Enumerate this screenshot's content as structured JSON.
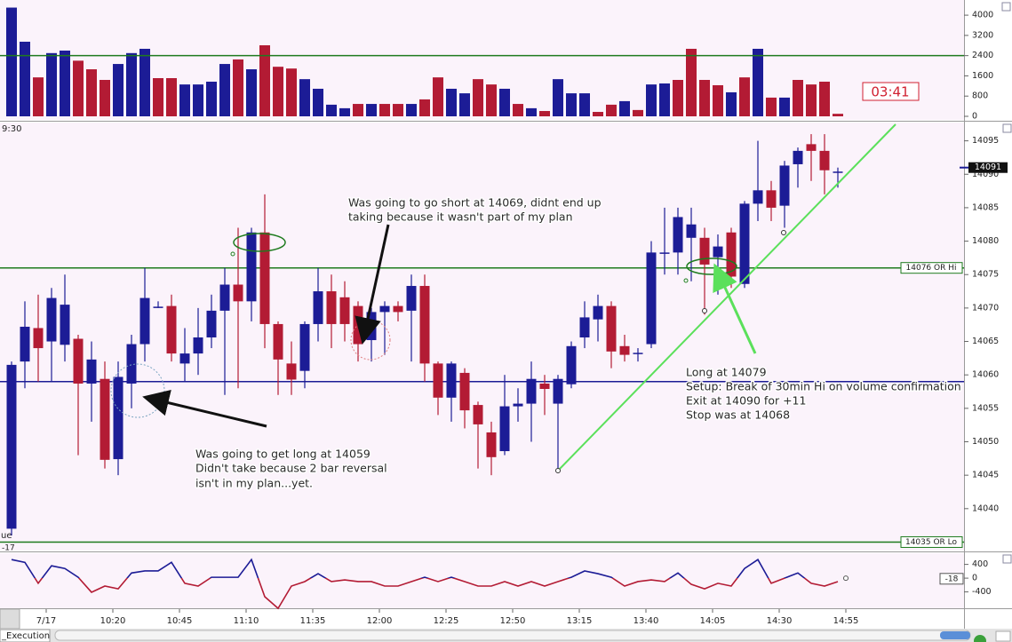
{
  "chart_data": [
    {
      "type": "bar",
      "values": [
        4300,
        2950,
        1540,
        2500,
        2600,
        2200,
        1860,
        1440,
        2070,
        2500,
        2670,
        1510,
        1510,
        1260,
        1260,
        1370,
        2070,
        2250,
        1860,
        2810,
        1960,
        1890,
        1470,
        1090,
        460,
        320,
        490,
        490,
        490,
        490,
        490,
        670,
        1540,
        1090,
        910,
        1470,
        1260,
        1090,
        490,
        320,
        210,
        1470,
        910,
        910,
        175,
        460,
        600,
        250,
        1260,
        1300,
        1440,
        2670,
        1440,
        1230,
        950,
        1540,
        2670,
        740,
        740,
        1440,
        1260,
        1370,
        100
      ],
      "colors": [
        "#1c1c96",
        "#1c1c96",
        "#b31b34",
        "#1c1c96",
        "#1c1c96",
        "#b31b34",
        "#b31b34",
        "#b31b34",
        "#1c1c96",
        "#1c1c96",
        "#1c1c96",
        "#b31b34",
        "#b31b34",
        "#1c1c96",
        "#1c1c96",
        "#1c1c96",
        "#1c1c96",
        "#b31b34",
        "#1c1c96",
        "#b31b34",
        "#b31b34",
        "#b31b34",
        "#1c1c96",
        "#1c1c96",
        "#1c1c96",
        "#1c1c96",
        "#b31b34",
        "#1c1c96",
        "#b31b34",
        "#b31b34",
        "#1c1c96",
        "#b31b34",
        "#b31b34",
        "#1c1c96",
        "#1c1c96",
        "#b31b34",
        "#b31b34",
        "#1c1c96",
        "#b31b34",
        "#1c1c96",
        "#b31b34",
        "#1c1c96",
        "#1c1c96",
        "#1c1c96",
        "#b31b34",
        "#b31b34",
        "#1c1c96",
        "#b31b34",
        "#1c1c96",
        "#1c1c96",
        "#b31b34",
        "#b31b34",
        "#b31b34",
        "#b31b34",
        "#1c1c96",
        "#b31b34",
        "#1c1c96",
        "#b31b34",
        "#1c1c96",
        "#b31b34",
        "#b31b34",
        "#b31b34",
        "#b31b34"
      ],
      "ylim": [
        0,
        4600
      ],
      "yticks": [
        0,
        800,
        1600,
        2400,
        3200,
        4000
      ],
      "reference_line": {
        "value": 2400,
        "color": "#1e7b1e"
      }
    },
    {
      "type": "candlestick",
      "open": [
        14037,
        14062,
        14067,
        14065,
        14064.5,
        14065.4,
        14058.7,
        14059.4,
        14047.4,
        14058.7,
        14064.6,
        14070,
        14070.3,
        14061.7,
        14063.2,
        14065.6,
        14069.6,
        14073.5,
        14071,
        14081.3,
        14067.6,
        14061.7,
        14060.6,
        14067.6,
        14072.5,
        14071.6,
        14070.3,
        14065.2,
        14069.4,
        14070.3,
        14069.6,
        14073.3,
        14061.7,
        14056.6,
        14060.3,
        14055.5,
        14051.4,
        14048.6,
        14055.3,
        14055.7,
        14058.7,
        14055.7,
        14058.6,
        14065.6,
        14068.3,
        14070.3,
        14064.3,
        14063.2,
        14064.6,
        14078.3,
        14078.3,
        14080.5,
        14080.5,
        14077.6,
        14081.3,
        14073.6,
        14085.6,
        14087.6,
        14085.3,
        14091.5,
        14094.5,
        14093.5,
        14090.4
      ],
      "high": [
        14062,
        14071,
        14072,
        14073,
        14075,
        14066,
        14065,
        14062,
        14062,
        14066,
        14076,
        14071,
        14072,
        14067,
        14070,
        14072,
        14076,
        14082,
        14082,
        14087,
        14068,
        14065,
        14068,
        14076,
        14075,
        14074,
        14071,
        14070,
        14071,
        14071,
        14075,
        14075,
        14062,
        14062,
        14061,
        14056,
        14053,
        14060,
        14058,
        14062,
        14060,
        14060,
        14065,
        14071,
        14072,
        14071,
        14066,
        14064,
        14080,
        14085,
        14085,
        14085,
        14082,
        14081,
        14082,
        14086,
        14095,
        14089,
        14092,
        14094,
        14096,
        14096,
        14091
      ],
      "low": [
        14036,
        14058,
        14059,
        14059,
        14062,
        14048,
        14053,
        14046,
        14045,
        14055,
        14062,
        14070,
        14062,
        14059,
        14060,
        14064,
        14057,
        14058,
        14068,
        14064,
        14057,
        14057,
        14058,
        14065,
        14064,
        14065,
        14062,
        14062,
        14063,
        14068,
        14062,
        14059,
        14054,
        14053,
        14052,
        14046,
        14045,
        14048,
        14053,
        14050,
        14054,
        14046,
        14058,
        14064,
        14065,
        14061,
        14062,
        14062,
        14064,
        14075,
        14075,
        14074,
        14069,
        14072,
        14073,
        14073,
        14083,
        14083,
        14082,
        14088,
        14089,
        14087,
        14088
      ],
      "close": [
        14061.5,
        14067.2,
        14064,
        14071.5,
        14070.5,
        14058.7,
        14062.3,
        14047.3,
        14059.7,
        14064.6,
        14071.5,
        14070.2,
        14063.2,
        14063.2,
        14065.6,
        14069.6,
        14073.5,
        14071,
        14081.3,
        14067.6,
        14062.3,
        14059.3,
        14067.6,
        14072.5,
        14067.6,
        14067.6,
        14064.6,
        14069.4,
        14070.3,
        14069.4,
        14073.3,
        14061.7,
        14056.6,
        14061.7,
        14054.7,
        14052.6,
        14047.7,
        14055.3,
        14055.7,
        14059.4,
        14057.9,
        14059.4,
        14064.3,
        14068.6,
        14070.3,
        14063.5,
        14063,
        14063.3,
        14078.3,
        14078.3,
        14083.6,
        14082.5,
        14076.5,
        14079.2,
        14074.7,
        14085.6,
        14087.6,
        14085,
        14091.3,
        14093.5,
        14093.5,
        14090.6,
        14090.4
      ],
      "up_color": "#1c1c96",
      "down_color": "#b31b34",
      "ylim": [
        14034,
        14098
      ],
      "yticks": [
        14040,
        14045,
        14050,
        14055,
        14060,
        14065,
        14070,
        14075,
        14080,
        14085,
        14090,
        14095
      ],
      "xticks": [
        {
          "value": 3,
          "label": "7/17"
        },
        {
          "value": 8,
          "label": "10:20"
        },
        {
          "value": 13,
          "label": "10:45"
        },
        {
          "value": 18,
          "label": "11:10"
        },
        {
          "value": 23,
          "label": "11:35"
        },
        {
          "value": 28,
          "label": "12:00"
        },
        {
          "value": 33,
          "label": "12:25"
        },
        {
          "value": 38,
          "label": "12:50"
        },
        {
          "value": 43,
          "label": "13:15"
        },
        {
          "value": 48,
          "label": "13:40"
        },
        {
          "value": 53,
          "label": "14:05"
        },
        {
          "value": 58,
          "label": "14:30"
        },
        {
          "value": 63,
          "label": "14:55"
        }
      ],
      "levels": [
        {
          "value": 14076,
          "label": "14076 OR Hi",
          "color": "#1e7b1e"
        },
        {
          "value": 14035,
          "label": "14035 OR Lo",
          "color": "#1e7b1e"
        },
        {
          "value": 14059,
          "color": "#1c1c96"
        }
      ],
      "last_price": 14091
    },
    {
      "type": "line",
      "values": [
        540,
        460,
        -150,
        360,
        280,
        25,
        -410,
        -230,
        -310,
        150,
        210,
        210,
        460,
        -150,
        -230,
        25,
        25,
        25,
        540,
        -540,
        -880,
        -230,
        -100,
        130,
        -100,
        -50,
        -100,
        -100,
        -230,
        -230,
        -100,
        25,
        -100,
        25,
        -100,
        -230,
        -230,
        -100,
        -230,
        -100,
        -230,
        -100,
        25,
        210,
        130,
        25,
        -230,
        -100,
        -50,
        -100,
        150,
        -180,
        -310,
        -150,
        -230,
        280,
        540,
        -150,
        0,
        150,
        -150,
        -230,
        -100
      ],
      "color_above": "#1c1c96",
      "color_below": "#b31b34",
      "ylim": [
        -850,
        700
      ],
      "yticks": [
        400,
        0,
        -400
      ],
      "last_value": -18,
      "subtitle": "-17"
    }
  ],
  "session_label": "9:30",
  "panel_label": "ue",
  "timer": "03:41",
  "annotations": [
    {
      "lines": [
        "Was going to go short at 14069, didnt end up",
        "taking because it wasn't part of my plan"
      ]
    },
    {
      "lines": [
        "Was going to get long at 14059",
        "Didn't take because 2 bar reversal",
        "isn't in my plan...yet."
      ]
    },
    {
      "lines": [
        "Long at 14079",
        "Setup: Break of 30min Hi on volume confirmation",
        "Exit at 14090 for +11",
        "Stop was at 14068"
      ]
    }
  ],
  "tab": "_Execution"
}
